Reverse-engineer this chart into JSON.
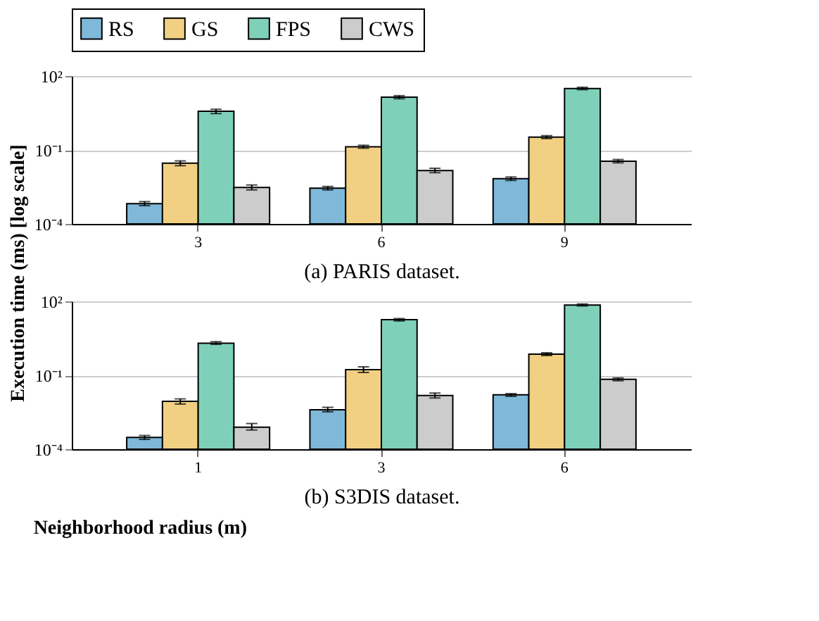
{
  "chart_data": [
    {
      "type": "bar",
      "xlabel": "(a) PARIS dataset.",
      "ylabel": "Execution time (ms) [log scale]",
      "categories": [
        "3",
        "6",
        "9"
      ],
      "log": true,
      "ylim": [
        0.0001,
        100
      ],
      "yticks": [
        {
          "value": 0.0001,
          "label": "10⁻⁴"
        },
        {
          "value": 0.1,
          "label": "10⁻¹"
        },
        {
          "value": 100,
          "label": "10²"
        }
      ],
      "grid": "y",
      "legend": "top",
      "series": [
        {
          "name": "RS",
          "color": "#7fb8d8",
          "values": [
            0.00066,
            0.0028,
            0.0068
          ],
          "errors": [
            [
              0.00055,
              0.0008
            ],
            [
              0.0024,
              0.0033
            ],
            [
              0.0058,
              0.008
            ]
          ]
        },
        {
          "name": "GS",
          "color": "#f2d083",
          "values": [
            0.029,
            0.135,
            0.33
          ],
          "errors": [
            [
              0.023,
              0.036
            ],
            [
              0.118,
              0.155
            ],
            [
              0.29,
              0.38
            ]
          ]
        },
        {
          "name": "FPS",
          "color": "#7fd0b8",
          "values": [
            3.7,
            14,
            31
          ],
          "errors": [
            [
              3.0,
              4.5
            ],
            [
              12,
              16
            ],
            [
              28,
              35
            ]
          ]
        },
        {
          "name": "CWS",
          "color": "#cccccc",
          "values": [
            0.003,
            0.0145,
            0.035
          ],
          "errors": [
            [
              0.0024,
              0.0038
            ],
            [
              0.012,
              0.018
            ],
            [
              0.03,
              0.041
            ]
          ]
        }
      ]
    },
    {
      "type": "bar",
      "xlabel": "(b) S3DIS dataset.",
      "annotations": [
        "Neighborhood radius (m)"
      ],
      "categories": [
        "1",
        "3",
        "6"
      ],
      "log": true,
      "ylim": [
        0.0001,
        100
      ],
      "yticks": [
        {
          "value": 0.0001,
          "label": "10⁻⁴"
        },
        {
          "value": 0.1,
          "label": "10⁻¹"
        },
        {
          "value": 100,
          "label": "10²"
        }
      ],
      "grid": "y",
      "series": [
        {
          "color": "#7fb8d8",
          "values": [
            0.0003,
            0.004,
            0.016
          ],
          "errors": [
            [
              0.00025,
              0.00036
            ],
            [
              0.0033,
              0.005
            ],
            [
              0.014,
              0.018
            ]
          ]
        },
        {
          "color": "#f2d083",
          "values": [
            0.0087,
            0.17,
            0.72
          ],
          "errors": [
            [
              0.0068,
              0.011
            ],
            [
              0.13,
              0.22
            ],
            [
              0.63,
              0.82
            ]
          ]
        },
        {
          "color": "#7fd0b8",
          "values": [
            2.0,
            18,
            71
          ],
          "errors": [
            [
              1.8,
              2.3
            ],
            [
              16,
              20
            ],
            [
              65,
              78
            ]
          ]
        },
        {
          "color": "#cccccc",
          "values": [
            0.00078,
            0.015,
            0.068
          ],
          "errors": [
            [
              0.0006,
              0.0011
            ],
            [
              0.012,
              0.019
            ],
            [
              0.06,
              0.078
            ]
          ]
        }
      ]
    }
  ]
}
